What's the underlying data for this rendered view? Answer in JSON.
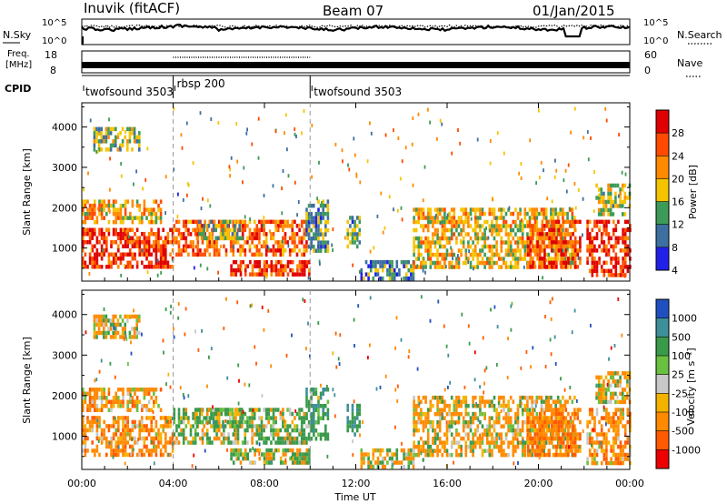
{
  "header": {
    "station": "Inuvik (fitACF)",
    "beam": "Beam 07",
    "date": "01/Jan/2015"
  },
  "noise_panel": {
    "left_label": "N.Sky",
    "right_label": "N.Search",
    "left_ticks": [
      "10^5",
      "10^0"
    ],
    "right_ticks": [
      "10^5",
      "10^0"
    ]
  },
  "freq_panel": {
    "left_label_line1": "Freq.",
    "left_label_line2": "[MHz]",
    "left_ticks": [
      "18",
      "8"
    ],
    "right_label": "Nave",
    "right_ticks": [
      "60",
      "0"
    ]
  },
  "cpid_panel": {
    "label": "CPID",
    "modes": [
      {
        "name": "twofsound 3503",
        "start_hour": 0
      },
      {
        "name": "rbsp 200",
        "start_hour": 4
      },
      {
        "name": "twofsound 3503",
        "start_hour": 10
      }
    ]
  },
  "power_panel": {
    "ylabel": "Slant Range [km]",
    "colorbar_label": "Power [dB]",
    "colorbar_ticks": [
      "28",
      "24",
      "20",
      "16",
      "12",
      "8",
      "4"
    ],
    "colorbar_colors": [
      "#e00000",
      "#ff4a00",
      "#ff8a00",
      "#f5c400",
      "#3d9a58",
      "#3d6fa0",
      "#2020e8"
    ]
  },
  "velocity_panel": {
    "ylabel": "Slant Range [km]",
    "colorbar_label": "Velocity [m s⁻¹]",
    "colorbar_ticks": [
      "1000",
      "500",
      "100",
      "25",
      "-25",
      "-100",
      "-500",
      "-1000"
    ],
    "colorbar_colors": [
      "#2050c0",
      "#3d8f9a",
      "#3a9a4a",
      "#6ac040",
      "#c8c8c8",
      "#f5b300",
      "#ff8a00",
      "#ff5a00",
      "#ee0000"
    ]
  },
  "xaxis": {
    "label": "Time UT",
    "ticks": [
      "00:00",
      "04:00",
      "08:00",
      "12:00",
      "16:00",
      "20:00",
      "00:00"
    ]
  },
  "chart_data": {
    "type": "heatmap",
    "title": "Inuvik (fitACF)",
    "subtitle": "Beam 07",
    "date": "01/Jan/2015",
    "xlabel": "Time UT",
    "xlim": [
      0,
      24
    ],
    "ylabel": "Slant Range [km]",
    "ylim": [
      180,
      4600
    ],
    "yticks": [
      1000,
      2000,
      3000,
      4000
    ],
    "vertical_markers_hours": [
      4,
      10
    ],
    "cpid_modes": [
      {
        "name": "twofsound 3503",
        "start": 0,
        "end": 4
      },
      {
        "name": "rbsp 200",
        "start": 4,
        "end": 10
      },
      {
        "name": "twofsound 3503",
        "start": 10,
        "end": 24
      }
    ],
    "noise": {
      "scale": "log",
      "range": [
        "10^0",
        "10^5"
      ],
      "n_sky_level": "about 10^4 most of the day, with a step down near 21:30 UT",
      "n_search_level": "about 10^4 most of the day"
    },
    "frequency": {
      "range_mhz": [
        8,
        18
      ],
      "twofsound_mhz": [
        10,
        12
      ],
      "rbsp_mhz": [
        10,
        12
      ],
      "nave_range": [
        0,
        60
      ]
    },
    "power_scale_db": {
      "min": 0,
      "max": 30,
      "ticks": [
        4,
        8,
        12,
        16,
        20,
        24,
        28
      ]
    },
    "velocity_scale_ms": {
      "min": -1500,
      "max": 1500,
      "ticks": [
        -1000,
        -500,
        -100,
        -25,
        25,
        100,
        500,
        1000
      ]
    },
    "echo_regions": [
      {
        "t_start": 0.0,
        "t_end": 4.0,
        "range_min": 500,
        "range_max": 1500,
        "power_db": 26,
        "velocity_ms": -300
      },
      {
        "t_start": 0.0,
        "t_end": 3.5,
        "range_min": 1600,
        "range_max": 2200,
        "power_db": 18,
        "velocity_ms": -250
      },
      {
        "t_start": 0.5,
        "t_end": 2.5,
        "range_min": 3400,
        "range_max": 4000,
        "power_db": 12,
        "velocity_ms": -100
      },
      {
        "t_start": 4.0,
        "t_end": 9.8,
        "range_min": 800,
        "range_max": 1700,
        "power_db": 22,
        "velocity_ms": 120
      },
      {
        "t_start": 5.0,
        "t_end": 7.0,
        "range_min": 1200,
        "range_max": 1700,
        "power_db": 12,
        "velocity_ms": 200
      },
      {
        "t_start": 6.5,
        "t_end": 10.0,
        "range_min": 300,
        "range_max": 700,
        "power_db": 26,
        "velocity_ms": 25
      },
      {
        "t_start": 9.8,
        "t_end": 10.8,
        "range_min": 900,
        "range_max": 2200,
        "power_db": 10,
        "velocity_ms": 300
      },
      {
        "t_start": 11.6,
        "t_end": 12.2,
        "range_min": 1000,
        "range_max": 1800,
        "power_db": 10,
        "velocity_ms": 500
      },
      {
        "t_start": 12.2,
        "t_end": 14.5,
        "range_min": 200,
        "range_max": 700,
        "power_db": 8,
        "velocity_ms": -100
      },
      {
        "t_start": 14.5,
        "t_end": 21.6,
        "range_min": 500,
        "range_max": 2000,
        "power_db": 16,
        "velocity_ms": -150
      },
      {
        "t_start": 19.5,
        "t_end": 21.8,
        "range_min": 500,
        "range_max": 1700,
        "power_db": 24,
        "velocity_ms": -400
      },
      {
        "t_start": 22.1,
        "t_end": 24.0,
        "range_min": 300,
        "range_max": 1700,
        "power_db": 26,
        "velocity_ms": -300
      },
      {
        "t_start": 22.5,
        "t_end": 24.0,
        "range_min": 1800,
        "range_max": 2600,
        "power_db": 14,
        "velocity_ms": -100
      }
    ]
  }
}
